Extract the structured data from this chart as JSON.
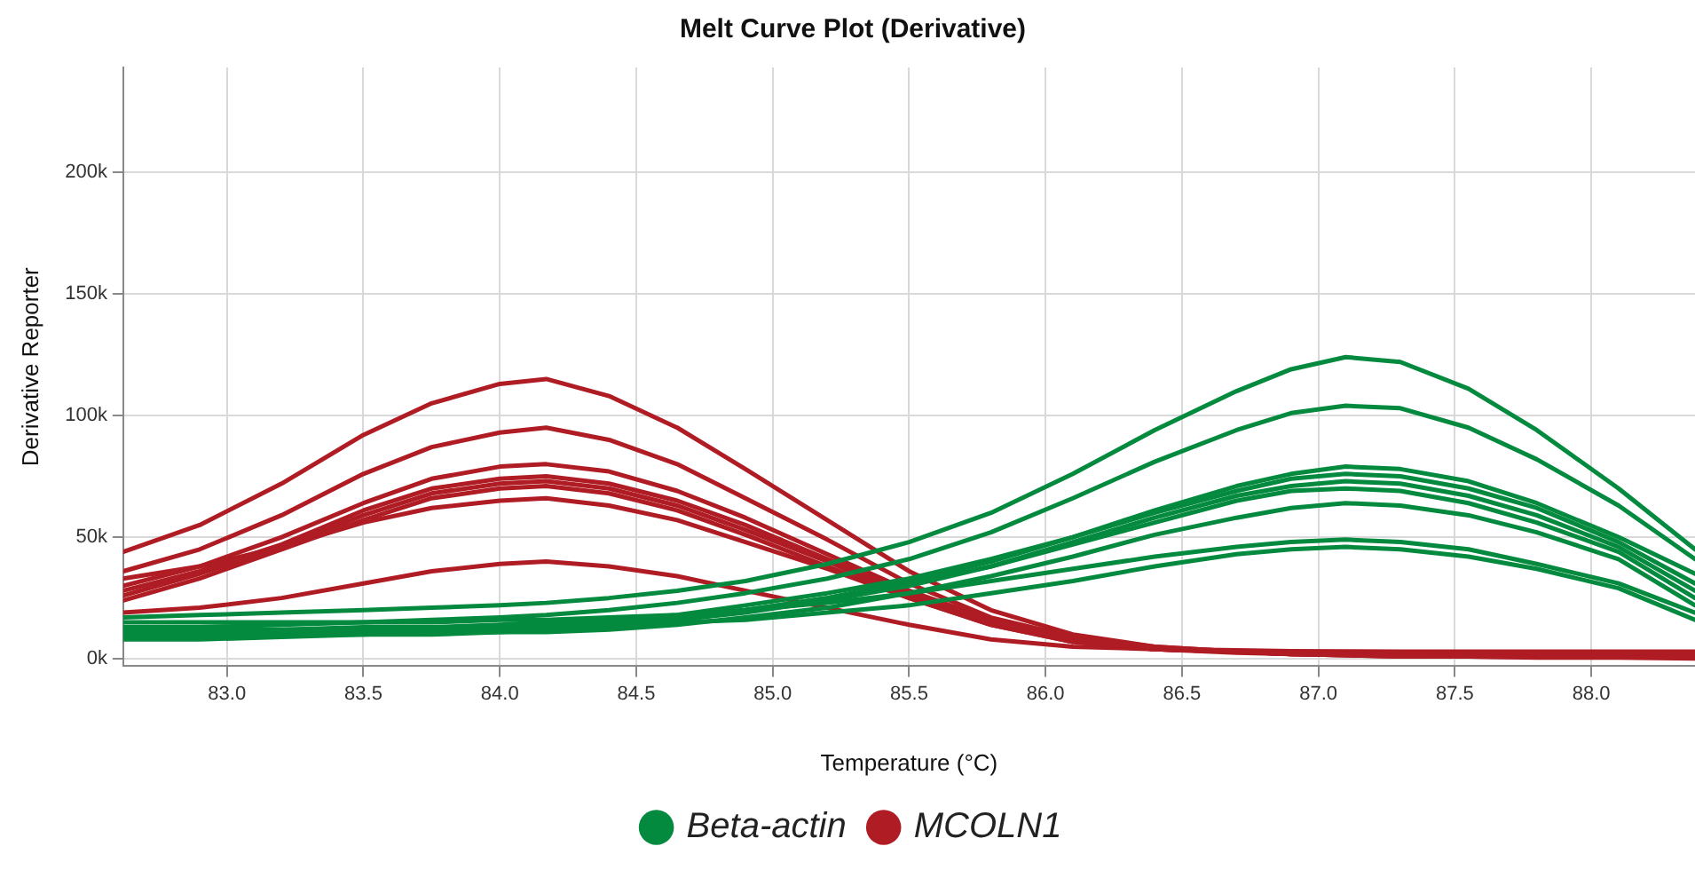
{
  "chart_data": {
    "type": "line",
    "title": "Melt Curve Plot (Derivative)",
    "xlabel": "Temperature (°C)",
    "ylabel": "Derivative Reporter",
    "x": [
      82.62,
      82.9,
      83.2,
      83.5,
      83.75,
      84.0,
      84.17,
      84.4,
      84.65,
      84.9,
      85.2,
      85.5,
      85.8,
      86.1,
      86.4,
      86.7,
      86.9,
      87.1,
      87.3,
      87.55,
      87.8,
      88.1,
      88.38
    ],
    "xlim": [
      82.62,
      88.38
    ],
    "xticks": [
      {
        "value": 83,
        "label": "83.0"
      },
      {
        "value": 83.5,
        "label": "83.5"
      },
      {
        "value": 84,
        "label": "84.0"
      },
      {
        "value": 84.5,
        "label": "84.5"
      },
      {
        "value": 85,
        "label": "85.0"
      },
      {
        "value": 85.5,
        "label": "85.5"
      },
      {
        "value": 86,
        "label": "86.0"
      },
      {
        "value": 86.5,
        "label": "86.5"
      },
      {
        "value": 87,
        "label": "87.0"
      },
      {
        "value": 87.5,
        "label": "87.5"
      },
      {
        "value": 88,
        "label": "88.0"
      }
    ],
    "ylim": [
      -3000,
      243000
    ],
    "yticks": [
      {
        "value": 0,
        "label": "0k"
      },
      {
        "value": 50000,
        "label": "50k"
      },
      {
        "value": 100000,
        "label": "100k"
      },
      {
        "value": 150000,
        "label": "150k"
      },
      {
        "value": 200000,
        "label": "200k"
      }
    ],
    "grid": true,
    "legend": "bottom",
    "marker": "none",
    "line_style": "solid",
    "series": [
      {
        "name": "Beta-actin",
        "color": "#048a3f",
        "values": [
          17000,
          18000,
          19000,
          20000,
          21000,
          22000,
          23000,
          25000,
          28000,
          32000,
          39000,
          48000,
          60000,
          76000,
          94000,
          110000,
          119000,
          124000,
          122000,
          111000,
          94000,
          70000,
          45000
        ]
      },
      {
        "color": "#048a3f",
        "values": [
          13000,
          13000,
          14000,
          15000,
          16000,
          17000,
          18000,
          20000,
          23000,
          27000,
          33000,
          41000,
          52000,
          66000,
          81000,
          94000,
          101000,
          104000,
          103000,
          95000,
          82000,
          63000,
          41000
        ]
      },
      {
        "color": "#048a3f",
        "values": [
          10000,
          10000,
          11000,
          11000,
          12000,
          12000,
          13000,
          14000,
          17000,
          20000,
          25000,
          32000,
          40000,
          50000,
          61000,
          71000,
          76000,
          79000,
          78000,
          73000,
          64000,
          50000,
          35000
        ]
      },
      {
        "color": "#048a3f",
        "values": [
          12000,
          12000,
          12000,
          13000,
          13000,
          14000,
          15000,
          16000,
          18000,
          22000,
          27000,
          33000,
          41000,
          50000,
          60000,
          69000,
          74000,
          76000,
          75000,
          70000,
          62000,
          48000,
          31000
        ]
      },
      {
        "color": "#048a3f",
        "values": [
          9000,
          9000,
          10000,
          10000,
          11000,
          11000,
          12000,
          13000,
          16000,
          19000,
          24000,
          30000,
          38000,
          48000,
          58000,
          67000,
          71000,
          73000,
          72000,
          67000,
          59000,
          46000,
          28000
        ]
      },
      {
        "color": "#048a3f",
        "values": [
          11000,
          11000,
          11000,
          12000,
          12000,
          13000,
          14000,
          15000,
          17000,
          20000,
          25000,
          31000,
          38000,
          47000,
          56000,
          65000,
          69000,
          70000,
          69000,
          64000,
          56000,
          44000,
          25000
        ]
      },
      {
        "color": "#048a3f",
        "values": [
          8000,
          8000,
          9000,
          10000,
          10000,
          11000,
          11000,
          12000,
          14000,
          17000,
          21000,
          27000,
          34000,
          42000,
          51000,
          58000,
          62000,
          64000,
          63000,
          59000,
          52000,
          41000,
          22000
        ]
      },
      {
        "color": "#048a3f",
        "values": [
          15000,
          15000,
          15000,
          15000,
          15000,
          16000,
          16000,
          17000,
          18000,
          20000,
          23000,
          27000,
          32000,
          37000,
          42000,
          46000,
          48000,
          49000,
          48000,
          45000,
          39000,
          31000,
          19000
        ]
      },
      {
        "color": "#048a3f",
        "values": [
          12500,
          12000,
          12000,
          12000,
          13000,
          13000,
          13000,
          14000,
          15000,
          16000,
          19000,
          22000,
          27000,
          32000,
          38000,
          43000,
          45000,
          46000,
          45000,
          42000,
          37000,
          29000,
          16000
        ]
      },
      {
        "name": "MCOLN1",
        "color": "#b01c24",
        "values": [
          44000,
          55000,
          72000,
          92000,
          105000,
          113000,
          115000,
          108000,
          95000,
          78000,
          57000,
          36000,
          20000,
          10000,
          5000,
          3000,
          2000,
          1500,
          1000,
          1000,
          500,
          500,
          200
        ]
      },
      {
        "color": "#b01c24",
        "values": [
          36000,
          45000,
          59000,
          76000,
          87000,
          93000,
          95000,
          90000,
          80000,
          66000,
          49000,
          31000,
          17000,
          9000,
          5000,
          3000,
          2000,
          1500,
          1000,
          1000,
          800,
          700,
          600
        ]
      },
      {
        "color": "#b01c24",
        "values": [
          30000,
          38000,
          50000,
          64000,
          74000,
          79000,
          80000,
          77000,
          69000,
          58000,
          43000,
          28000,
          16000,
          8000,
          4000,
          3000,
          2000,
          1500,
          1200,
          1100,
          1000,
          1000,
          1000
        ]
      },
      {
        "color": "#b01c24",
        "values": [
          28000,
          36000,
          47000,
          61000,
          70000,
          74000,
          75000,
          72000,
          65000,
          55000,
          41000,
          27000,
          15000,
          8000,
          4000,
          3000,
          2000,
          1800,
          1600,
          1500,
          1400,
          1400,
          1400
        ]
      },
      {
        "color": "#b01c24",
        "values": [
          26000,
          35000,
          46000,
          59000,
          68000,
          72000,
          73000,
          70000,
          63000,
          53000,
          40000,
          26000,
          15000,
          8000,
          4000,
          2500,
          2000,
          1900,
          1900,
          1800,
          1800,
          1800,
          1800
        ]
      },
      {
        "color": "#b01c24",
        "values": [
          24000,
          33000,
          45000,
          57000,
          66000,
          70000,
          71000,
          68000,
          61000,
          51000,
          38000,
          25000,
          14000,
          7000,
          4000,
          3000,
          2500,
          2400,
          2300,
          2200,
          2200,
          2200,
          2200
        ]
      },
      {
        "color": "#b01c24",
        "values": [
          33000,
          38000,
          46000,
          56000,
          62000,
          65000,
          66000,
          63000,
          57000,
          48000,
          37000,
          25000,
          14000,
          7000,
          4000,
          3000,
          2800,
          2700,
          2700,
          2600,
          2600,
          2600,
          2600
        ]
      },
      {
        "color": "#b01c24",
        "values": [
          19000,
          21000,
          25000,
          31000,
          36000,
          39000,
          40000,
          38000,
          34000,
          28000,
          21000,
          14000,
          8000,
          5000,
          4000,
          3500,
          3200,
          3100,
          3000,
          3000,
          3000,
          3000,
          3000
        ]
      }
    ]
  }
}
